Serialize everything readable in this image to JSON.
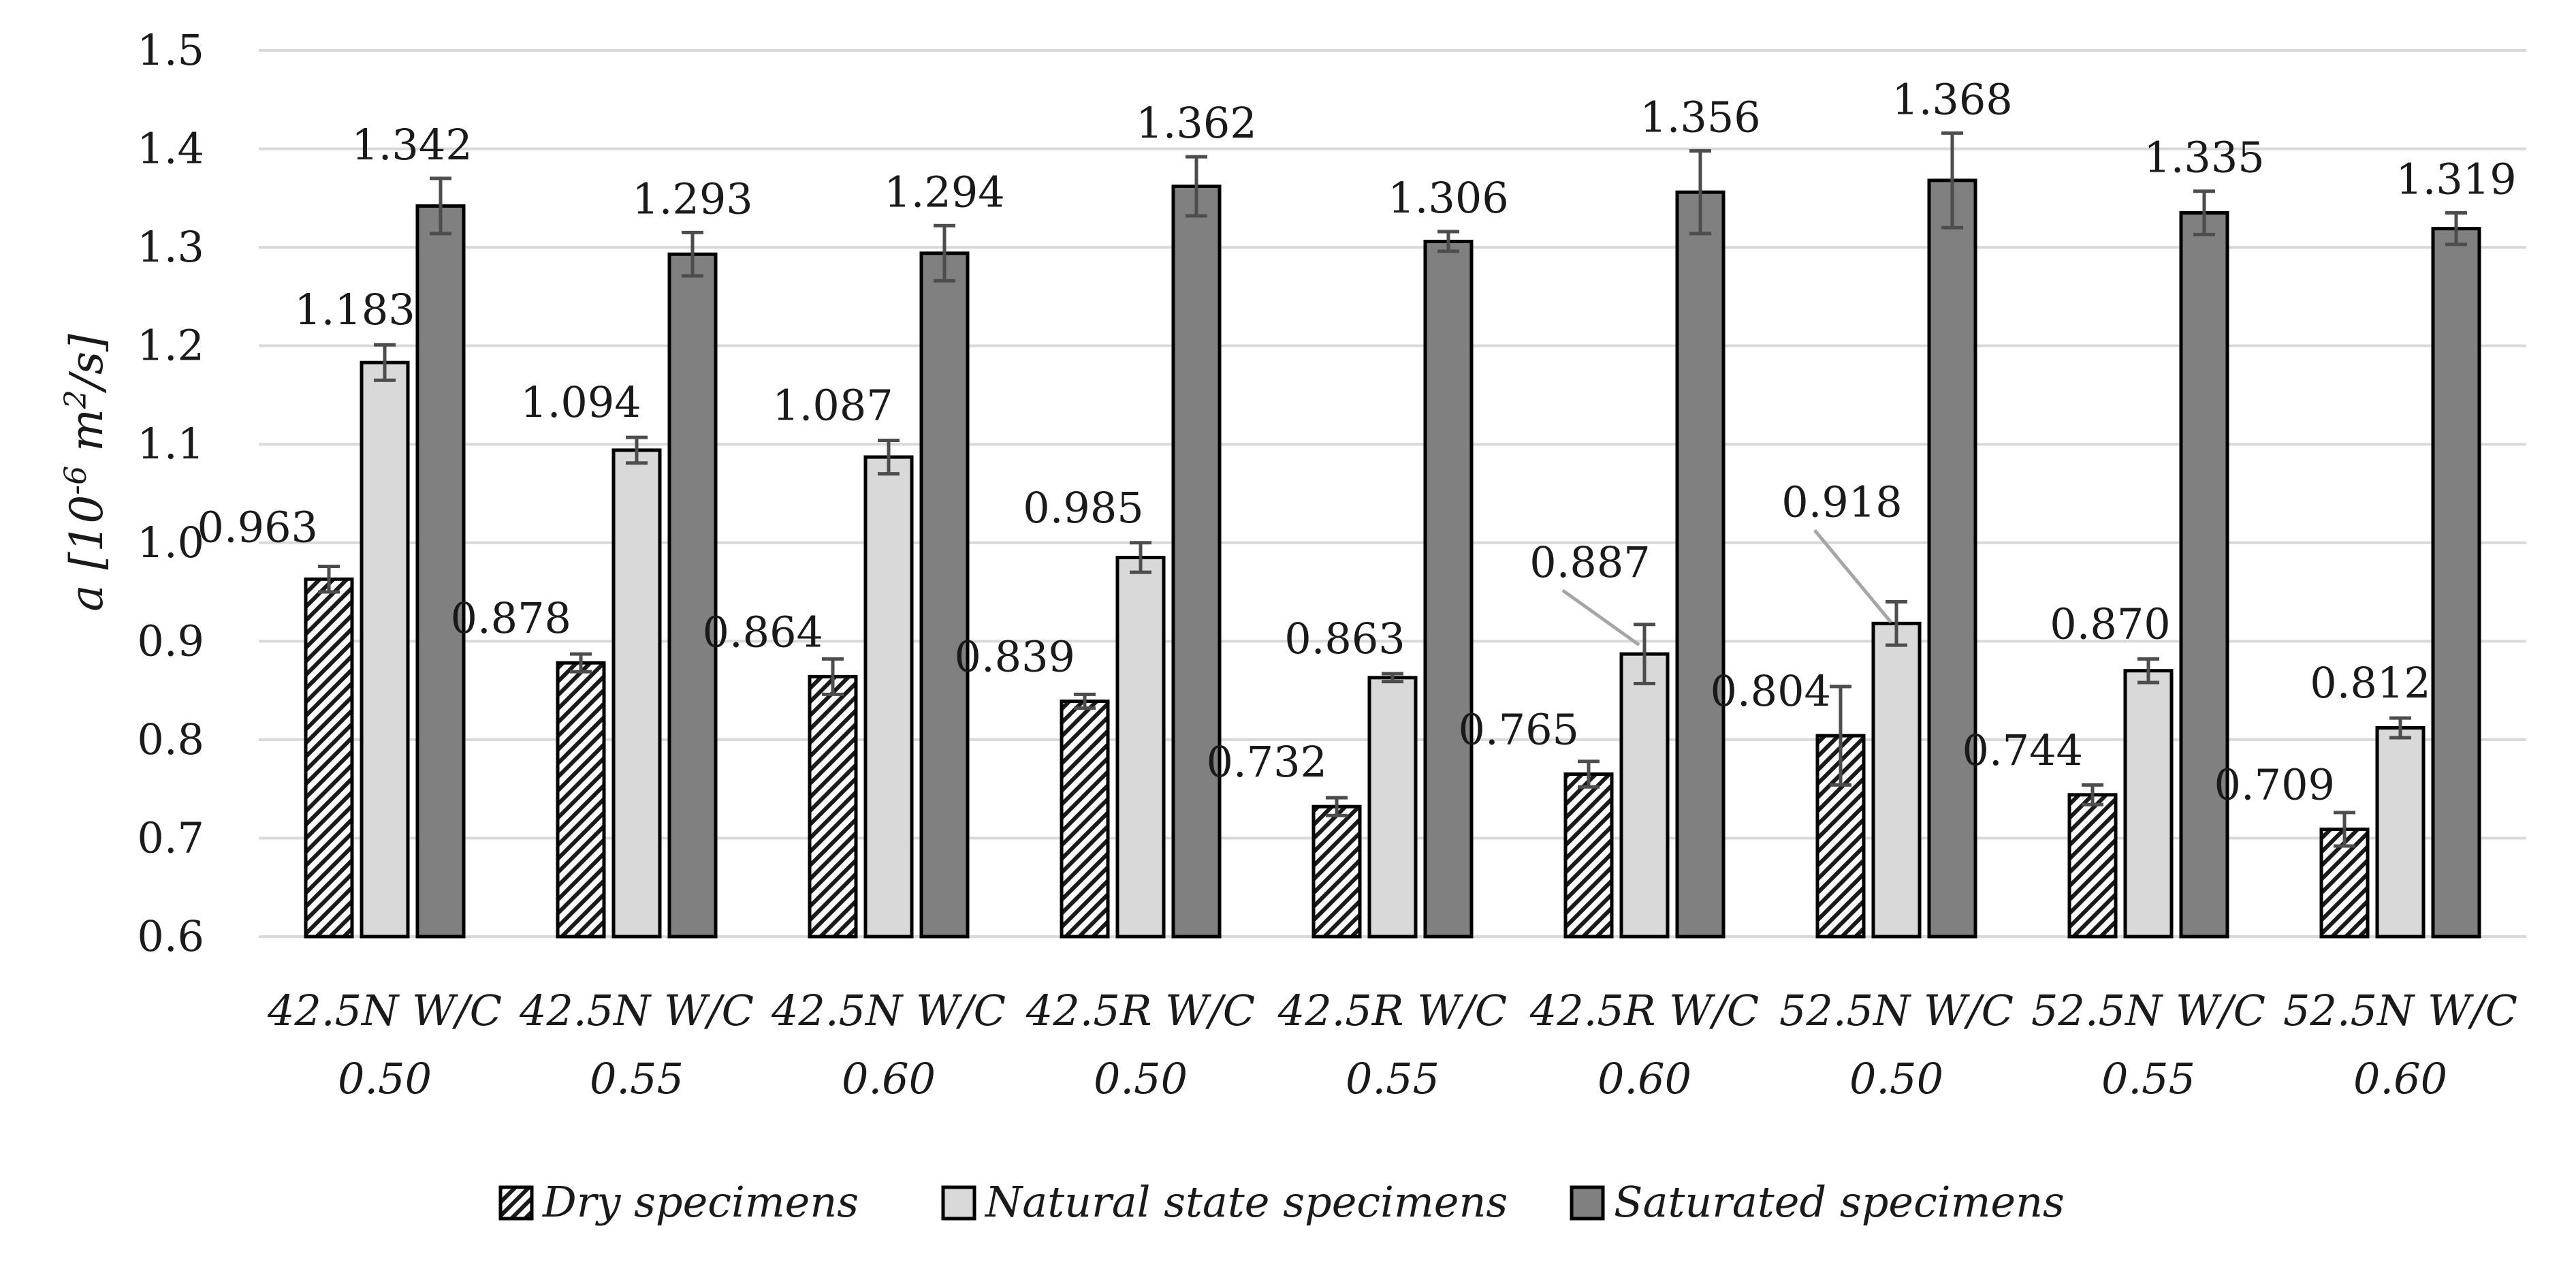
{
  "chart_data": {
    "type": "bar",
    "title": "",
    "ylabel": {
      "symbol": "a",
      "bracket_open": "[10",
      "exp1": "-6",
      "unit_mid": " m",
      "exp2": "2",
      "unit_end": "/s]"
    },
    "xlabel": "",
    "ylim": [
      0.6,
      1.5
    ],
    "y_ticks": [
      "0.6",
      "0.7",
      "0.8",
      "0.9",
      "1.0",
      "1.1",
      "1.2",
      "1.3",
      "1.4",
      "1.5"
    ],
    "grid": true,
    "legend_position": "bottom",
    "categories": [
      [
        "42.5N W/C",
        "0.50"
      ],
      [
        "42.5N W/C",
        "0.55"
      ],
      [
        "42.5N W/C",
        "0.60"
      ],
      [
        "42.5R W/C",
        "0.50"
      ],
      [
        "42.5R W/C",
        "0.55"
      ],
      [
        "42.5R W/C",
        "0.60"
      ],
      [
        "52.5N W/C",
        "0.50"
      ],
      [
        "52.5N W/C",
        "0.55"
      ],
      [
        "52.5N W/C",
        "0.60"
      ]
    ],
    "series": [
      {
        "name": "Dry specimens",
        "fill": "hatch",
        "values": [
          0.963,
          0.878,
          0.864,
          0.839,
          0.732,
          0.765,
          0.804,
          0.744,
          0.709
        ],
        "labels": [
          "0.963",
          "0.878",
          "0.864",
          "0.839",
          "0.732",
          "0.765",
          "0.804",
          "0.744",
          "0.709"
        ],
        "errors": [
          0.013,
          0.009,
          0.018,
          0.007,
          0.009,
          0.013,
          0.05,
          0.01,
          0.017
        ]
      },
      {
        "name": "Natural state specimens",
        "fill": "#d9d9d9",
        "values": [
          1.183,
          1.094,
          1.087,
          0.985,
          0.863,
          0.887,
          0.918,
          0.87,
          0.812
        ],
        "labels": [
          "1.183",
          "1.094",
          "1.087",
          "0.985",
          "0.863",
          "0.887",
          "0.918",
          "0.870",
          "0.812"
        ],
        "errors": [
          0.018,
          0.013,
          0.017,
          0.015,
          0.004,
          0.03,
          0.022,
          0.012,
          0.01
        ]
      },
      {
        "name": "Saturated specimens",
        "fill": "#808080",
        "values": [
          1.342,
          1.293,
          1.294,
          1.362,
          1.306,
          1.356,
          1.368,
          1.335,
          1.319
        ],
        "labels": [
          "1.342",
          "1.293",
          "1.294",
          "1.362",
          "1.306",
          "1.356",
          "1.368",
          "1.335",
          "1.319"
        ],
        "errors": [
          0.028,
          0.022,
          0.028,
          0.03,
          0.01,
          0.042,
          0.048,
          0.022,
          0.016
        ]
      }
    ]
  },
  "colors": {
    "grid": "#d9d9d9",
    "bar_stroke": "#000000",
    "error_bar": "#4d4d4d",
    "leader_line": "#a6a6a6"
  }
}
